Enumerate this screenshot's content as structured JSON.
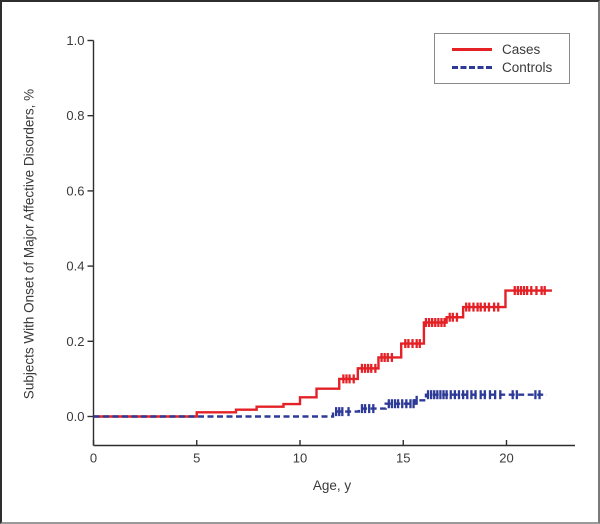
{
  "figure": {
    "background": "#ffffff",
    "frame_color": "#2e2e2e",
    "axis_color": "#2e2e2e",
    "text_color": "#3a3a3a"
  },
  "chart_data": {
    "type": "line",
    "subtype": "kaplan-meier-step",
    "title": "",
    "xlabel": "Age, y",
    "ylabel": "Subjects With Onset of Major Affective Disorders, %",
    "xlim": [
      0,
      23.3
    ],
    "ylim": [
      0,
      1.0
    ],
    "x_ticks": [
      0,
      5,
      10,
      15,
      20
    ],
    "y_ticks": [
      0.0,
      0.2,
      0.4,
      0.6,
      0.8,
      1.0
    ],
    "y_tick_labels": [
      "0.0",
      "0.2",
      "0.4",
      "0.6",
      "0.8",
      "1.0"
    ],
    "grid": false,
    "legend_position": "top-right",
    "series": [
      {
        "name": "Cases",
        "color": "#e32126",
        "line_style": "solid",
        "step_points": [
          [
            0,
            0
          ],
          [
            5,
            0.011
          ],
          [
            6.9,
            0.018
          ],
          [
            7.9,
            0.026
          ],
          [
            9.2,
            0.033
          ],
          [
            10.0,
            0.051
          ],
          [
            10.8,
            0.074
          ],
          [
            11.9,
            0.1
          ],
          [
            12.8,
            0.128
          ],
          [
            13.8,
            0.157
          ],
          [
            14.9,
            0.194
          ],
          [
            16.0,
            0.25
          ],
          [
            17.1,
            0.264
          ],
          [
            17.9,
            0.291
          ],
          [
            19.95,
            0.335
          ]
        ],
        "end_age": 22.2,
        "censor_ages": [
          12.1,
          12.25,
          12.4,
          12.6,
          13.0,
          13.15,
          13.3,
          13.45,
          13.65,
          13.95,
          14.1,
          14.25,
          14.45,
          15.1,
          15.25,
          15.45,
          15.65,
          15.8,
          16.1,
          16.25,
          16.4,
          16.55,
          16.7,
          16.85,
          17.0,
          17.25,
          17.4,
          17.6,
          18.05,
          18.2,
          18.4,
          18.6,
          18.75,
          18.95,
          19.15,
          19.4,
          19.6,
          20.4,
          20.55,
          20.7,
          20.85,
          21.0,
          21.2,
          21.45,
          21.7,
          21.85
        ]
      },
      {
        "name": "Controls",
        "color": "#2e3a97",
        "line_style": "dashed",
        "step_points": [
          [
            0,
            0
          ],
          [
            11.6,
            0.013
          ],
          [
            12.85,
            0.021
          ],
          [
            14.15,
            0.034
          ],
          [
            15.55,
            0.043
          ],
          [
            16.1,
            0.058
          ]
        ],
        "end_age": 21.95,
        "censor_ages": [
          11.75,
          11.9,
          12.05,
          12.35,
          13.0,
          13.15,
          13.35,
          13.55,
          14.3,
          14.45,
          14.6,
          14.75,
          14.95,
          15.15,
          15.35,
          15.5,
          15.65,
          16.2,
          16.35,
          16.5,
          16.65,
          16.8,
          16.95,
          17.1,
          17.3,
          17.5,
          17.7,
          17.9,
          18.1,
          18.3,
          18.5,
          18.75,
          18.95,
          19.2,
          19.45,
          19.7,
          20.3,
          20.5,
          21.4,
          21.6
        ]
      }
    ]
  }
}
